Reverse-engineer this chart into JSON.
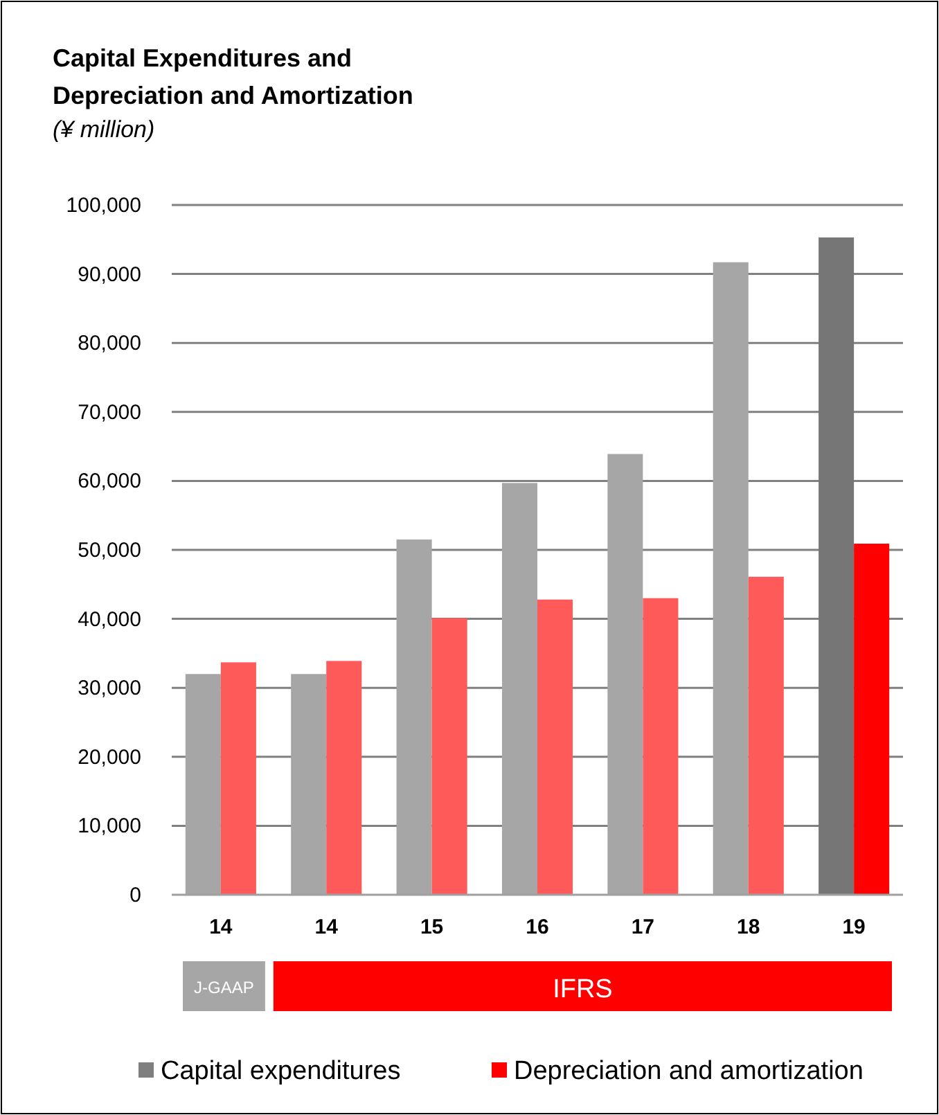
{
  "chart_data": {
    "type": "bar",
    "title": "Capital Expenditures and Depreciation and Amortization",
    "subtitle": "(¥ million)",
    "categories": [
      "14",
      "14",
      "15",
      "16",
      "17",
      "18",
      "19"
    ],
    "series": [
      {
        "name": "Capital expenditures",
        "color": "#7f7f7f",
        "colors": [
          "#a6a6a6",
          "#a6a6a6",
          "#a6a6a6",
          "#a6a6a6",
          "#a6a6a6",
          "#a6a6a6",
          "#767676"
        ],
        "values": [
          32000,
          32000,
          51500,
          59700,
          63900,
          91700,
          95300
        ]
      },
      {
        "name": "Depreciation and amortization",
        "color": "#ff0000",
        "colors": [
          "#ff5a5a",
          "#ff5a5a",
          "#ff5a5a",
          "#ff5a5a",
          "#ff5a5a",
          "#ff5a5a",
          "#ff0000"
        ],
        "values": [
          33700,
          33900,
          40100,
          42800,
          43000,
          46100,
          50900
        ]
      }
    ],
    "annotations": [
      "J-GAAP",
      "IFRS"
    ],
    "ylim": [
      0,
      100000
    ],
    "yticks": [
      0,
      {
        "value": 10000,
        "label": "10,000"
      },
      {
        "value": 20000,
        "label": "20,000"
      },
      {
        "value": 30000,
        "label": "30,000"
      },
      {
        "value": 40000,
        "label": "40,000"
      },
      {
        "value": 50000,
        "label": "50,000"
      },
      {
        "value": 60000,
        "label": "60,000"
      },
      {
        "value": 70000,
        "label": "70,000"
      },
      {
        "value": 80000,
        "label": "80,000"
      },
      {
        "value": 90000,
        "label": "90,000"
      },
      {
        "value": 100000,
        "label": "100,000"
      }
    ],
    "grid": "y",
    "legend": "bottom"
  }
}
